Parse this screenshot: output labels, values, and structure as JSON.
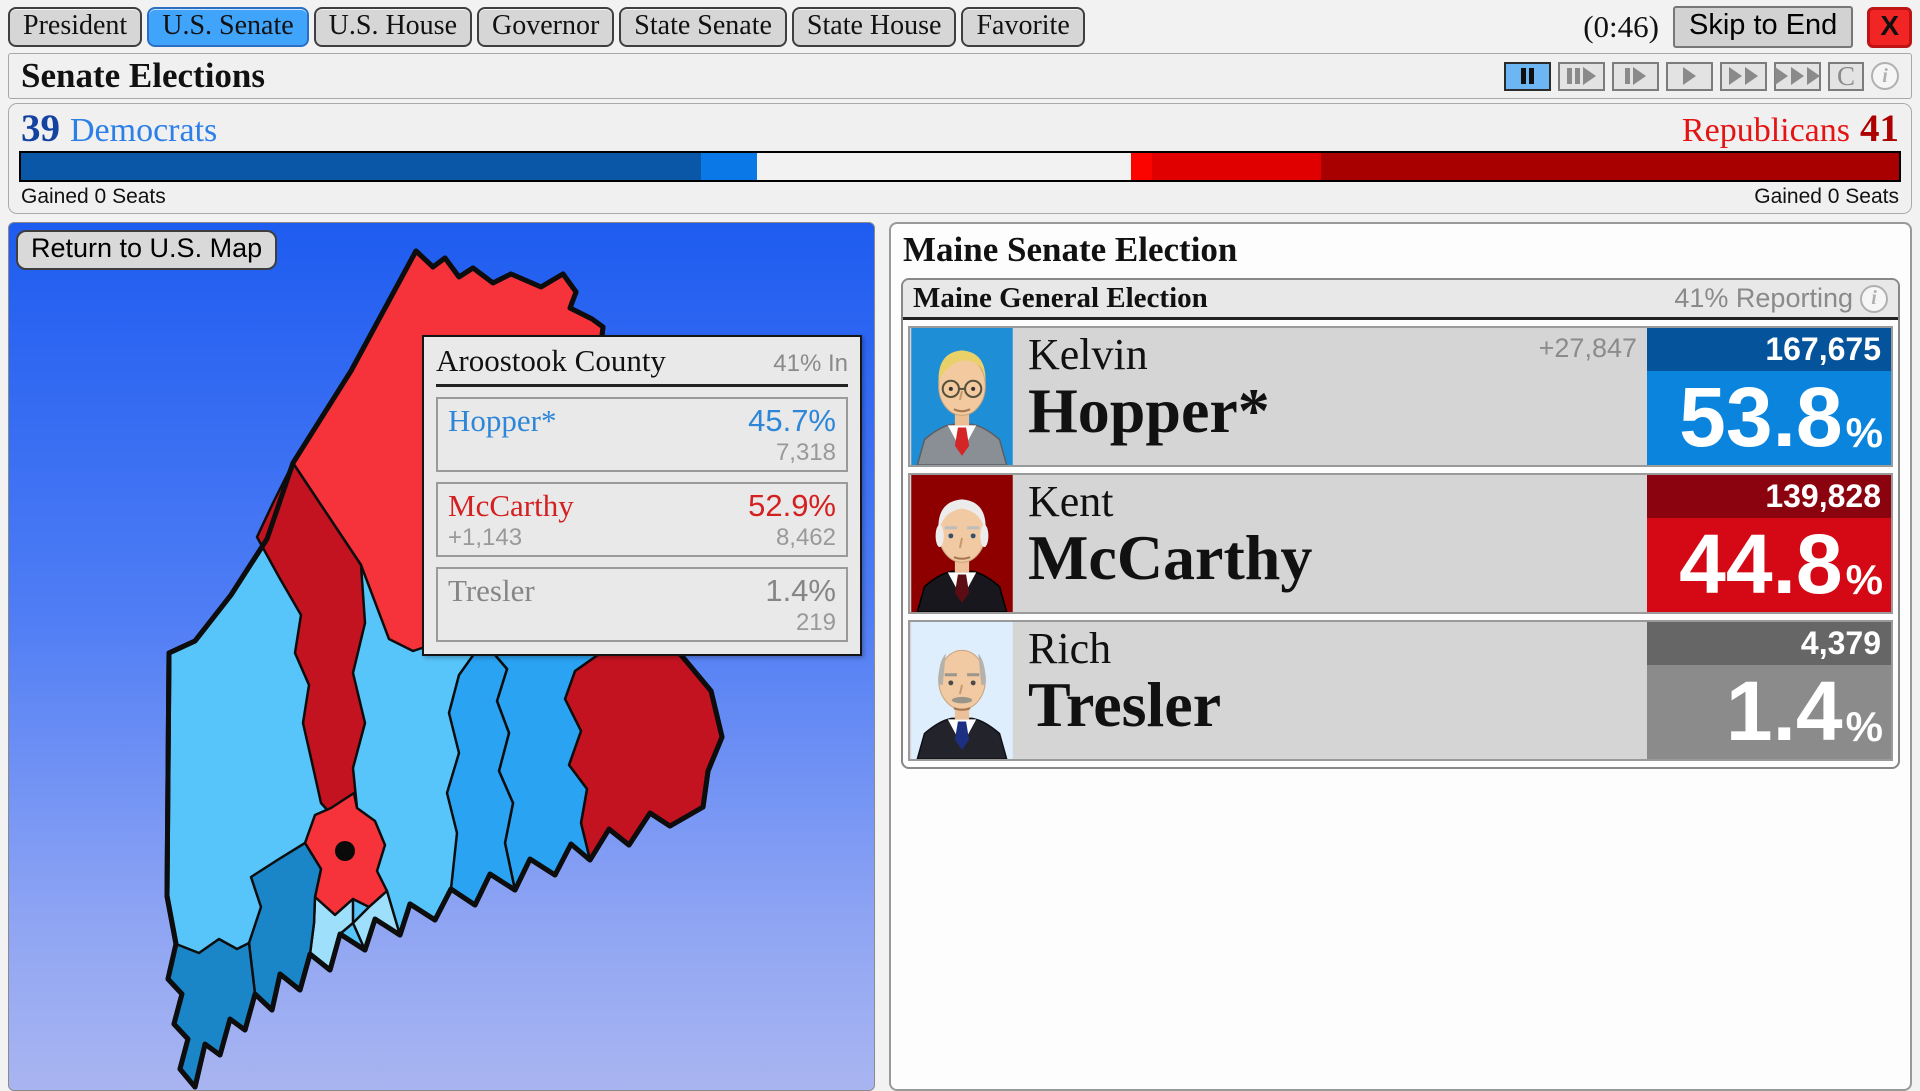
{
  "tabs": {
    "items": [
      {
        "label": "President"
      },
      {
        "label": "U.S. Senate",
        "active": true
      },
      {
        "label": "U.S. House"
      },
      {
        "label": "Governor"
      },
      {
        "label": "State Senate"
      },
      {
        "label": "State House"
      },
      {
        "label": "Favorite"
      }
    ],
    "timer": "(0:46)",
    "skip_label": "Skip to End",
    "close_label": "X"
  },
  "header": {
    "title": "Senate Elections",
    "clear_label": "C",
    "info_glyph": "i",
    "controls": [
      "pause",
      "play-interval-skip",
      "play-interval",
      "play",
      "fast-forward",
      "fastest-forward"
    ],
    "active_control": "pause",
    "active_control_color": "#6cb6f4"
  },
  "balance": {
    "dem_seats": "39",
    "dem_label": "Democrats",
    "rep_label": "Republicans",
    "rep_seats": "41",
    "dem_gained": "Gained 0 Seats",
    "rep_gained": "Gained 0 Seats",
    "dem_color": "#2d7fe8",
    "rep_color": "#e41414",
    "segments": [
      {
        "label": "dem-solid",
        "color": "#0b57a7",
        "pct": 36.2
      },
      {
        "label": "dem-leaning",
        "color": "#0a78e6",
        "pct": 3.0
      },
      {
        "label": "undecided",
        "color": "#f2f2f2",
        "pct": 19.9
      },
      {
        "label": "rep-flash",
        "color": "#fb0400",
        "pct": 1.1
      },
      {
        "label": "rep-leaning",
        "color": "#e00000",
        "pct": 9.0
      },
      {
        "label": "rep-solid",
        "color": "#a80000",
        "pct": 30.8
      }
    ]
  },
  "map": {
    "return_label": "Return to U.S. Map",
    "tooltip": {
      "county": "Aroostook County",
      "reporting": "41% In",
      "rows": [
        {
          "name": "Hopper*",
          "pct": "45.7%",
          "votes": "7,318",
          "margin": "",
          "party": "dem"
        },
        {
          "name": "McCarthy",
          "pct": "52.9%",
          "votes": "8,462",
          "margin": "+1,143",
          "party": "rep"
        },
        {
          "name": "Tresler",
          "pct": "1.4%",
          "votes": "219",
          "margin": "",
          "party": "ind"
        }
      ]
    },
    "county_colors": {
      "dem_strong": "#1b86c7",
      "dem_medium": "#2aa3f3",
      "dem_light": "#57c5fa",
      "dem_pale": "#9ee0fb",
      "rep_bright": "#f6333b",
      "rep_dark": "#c41320"
    }
  },
  "panel": {
    "title": "Maine Senate Election",
    "subtitle": "Maine General Election",
    "reporting": "41% Reporting",
    "info_glyph": "i",
    "pct_sign": "%",
    "candidates": [
      {
        "first": "Kelvin",
        "last": "Hopper*",
        "votes": "167,675",
        "pct": "53.8",
        "margin": "+27,847",
        "votes_bg": "#04539b",
        "pct_bg": "#0a84dc"
      },
      {
        "first": "Kent",
        "last": "McCarthy",
        "votes": "139,828",
        "pct": "44.8",
        "margin": "",
        "votes_bg": "#8c0310",
        "pct_bg": "#d40915"
      },
      {
        "first": "Rich",
        "last": "Tresler",
        "votes": "4,379",
        "pct": "1.4",
        "margin": "",
        "votes_bg": "#666666",
        "pct_bg": "#8b8b8b"
      }
    ]
  }
}
